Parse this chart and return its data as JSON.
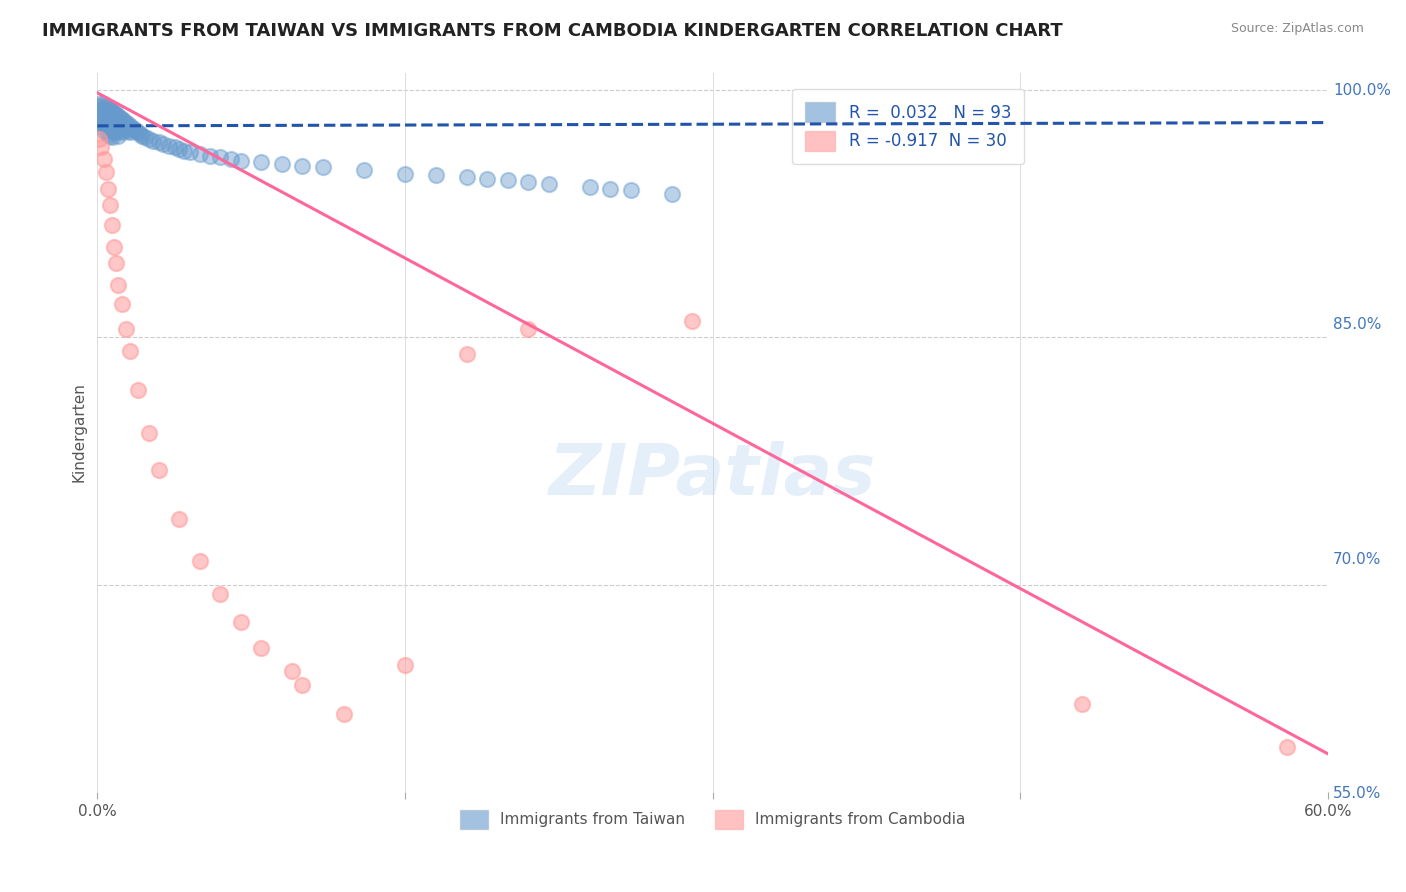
{
  "title": "IMMIGRANTS FROM TAIWAN VS IMMIGRANTS FROM CAMBODIA KINDERGARTEN CORRELATION CHART",
  "source": "Source: ZipAtlas.com",
  "ylabel": "Kindergarten",
  "legend_labels": [
    "Immigrants from Taiwan",
    "Immigrants from Cambodia"
  ],
  "taiwan_R": 0.032,
  "taiwan_N": 93,
  "cambodia_R": -0.917,
  "cambodia_N": 30,
  "xmin": 0.0,
  "xmax": 0.6,
  "ymin": 0.575,
  "ymax": 1.01,
  "yticks": [
    1.0,
    0.85,
    0.7,
    0.55
  ],
  "ytick_labels": [
    "100.0%",
    "85.0%",
    "70.0%",
    "55.0%"
  ],
  "xticks": [
    0.0,
    0.15,
    0.3,
    0.45,
    0.6
  ],
  "xtick_labels": [
    "0.0%",
    "",
    "",
    "",
    "60.0%"
  ],
  "color_taiwan": "#6699CC",
  "color_cambodia": "#FF9999",
  "color_taiwan_line": "#2255AA",
  "color_cambodia_line": "#FF6699",
  "watermark": "ZIPatlas",
  "taiwan_x": [
    0.001,
    0.001,
    0.001,
    0.002,
    0.002,
    0.002,
    0.002,
    0.003,
    0.003,
    0.003,
    0.003,
    0.003,
    0.004,
    0.004,
    0.004,
    0.004,
    0.005,
    0.005,
    0.005,
    0.005,
    0.005,
    0.006,
    0.006,
    0.006,
    0.006,
    0.006,
    0.007,
    0.007,
    0.007,
    0.007,
    0.007,
    0.008,
    0.008,
    0.008,
    0.008,
    0.009,
    0.009,
    0.009,
    0.01,
    0.01,
    0.01,
    0.01,
    0.011,
    0.011,
    0.011,
    0.012,
    0.012,
    0.012,
    0.013,
    0.013,
    0.014,
    0.014,
    0.015,
    0.015,
    0.016,
    0.016,
    0.017,
    0.018,
    0.019,
    0.02,
    0.021,
    0.022,
    0.023,
    0.025,
    0.027,
    0.03,
    0.032,
    0.035,
    0.038,
    0.04,
    0.042,
    0.045,
    0.05,
    0.055,
    0.06,
    0.065,
    0.07,
    0.08,
    0.09,
    0.1,
    0.11,
    0.13,
    0.15,
    0.165,
    0.18,
    0.19,
    0.2,
    0.21,
    0.22,
    0.24,
    0.25,
    0.26,
    0.28
  ],
  "taiwan_y": [
    0.99,
    0.985,
    0.98,
    0.992,
    0.988,
    0.983,
    0.978,
    0.991,
    0.987,
    0.983,
    0.979,
    0.975,
    0.99,
    0.986,
    0.982,
    0.978,
    0.989,
    0.985,
    0.981,
    0.977,
    0.973,
    0.988,
    0.984,
    0.98,
    0.976,
    0.972,
    0.987,
    0.983,
    0.979,
    0.975,
    0.971,
    0.986,
    0.982,
    0.978,
    0.974,
    0.985,
    0.981,
    0.977,
    0.984,
    0.98,
    0.976,
    0.972,
    0.983,
    0.979,
    0.975,
    0.982,
    0.978,
    0.974,
    0.981,
    0.977,
    0.98,
    0.976,
    0.979,
    0.975,
    0.978,
    0.974,
    0.977,
    0.976,
    0.975,
    0.974,
    0.973,
    0.972,
    0.971,
    0.97,
    0.969,
    0.968,
    0.967,
    0.966,
    0.965,
    0.964,
    0.963,
    0.962,
    0.961,
    0.96,
    0.959,
    0.958,
    0.957,
    0.956,
    0.955,
    0.954,
    0.953,
    0.951,
    0.949,
    0.948,
    0.947,
    0.946,
    0.945,
    0.944,
    0.943,
    0.941,
    0.94,
    0.939,
    0.937
  ],
  "cambodia_x": [
    0.001,
    0.002,
    0.003,
    0.004,
    0.005,
    0.006,
    0.007,
    0.008,
    0.009,
    0.01,
    0.012,
    0.014,
    0.016,
    0.02,
    0.025,
    0.03,
    0.04,
    0.05,
    0.06,
    0.07,
    0.08,
    0.095,
    0.1,
    0.12,
    0.15,
    0.18,
    0.21,
    0.29,
    0.48,
    0.58
  ],
  "cambodia_y": [
    0.97,
    0.965,
    0.958,
    0.95,
    0.94,
    0.93,
    0.918,
    0.905,
    0.895,
    0.882,
    0.87,
    0.855,
    0.842,
    0.818,
    0.792,
    0.77,
    0.74,
    0.715,
    0.695,
    0.678,
    0.662,
    0.648,
    0.64,
    0.622,
    0.652,
    0.84,
    0.855,
    0.86,
    0.628,
    0.602
  ],
  "taiwan_line_x0": 0.0,
  "taiwan_line_y0": 0.978,
  "taiwan_line_x1": 0.6,
  "taiwan_line_y1": 0.98,
  "cambodia_line_x0": 0.0,
  "cambodia_line_y0": 0.998,
  "cambodia_line_x1": 0.6,
  "cambodia_line_y1": 0.598
}
